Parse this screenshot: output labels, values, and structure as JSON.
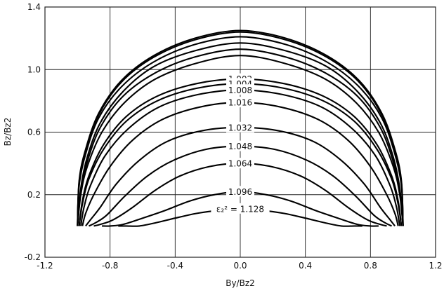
{
  "chart_data": {
    "type": "line",
    "xlabel": "By/Bz2",
    "ylabel": "Bz/Bz2",
    "xlim": [
      -1.2,
      1.2
    ],
    "ylim": [
      -0.2,
      1.4
    ],
    "xticks": [
      -1.2,
      -0.8,
      -0.4,
      0,
      0.4,
      0.8,
      1.2
    ],
    "yticks": [
      -0.2,
      0.2,
      0.6,
      1.0,
      1.4
    ],
    "xtick_labels": [
      "-1.2",
      "-0.8",
      "-0.4",
      "0.0",
      "0.4",
      "0.8",
      "1.2"
    ],
    "ytick_labels": [
      "-0.2",
      "0.2",
      "0.6",
      "1.0",
      "1.4"
    ],
    "grid": true,
    "series": [
      {
        "label": "",
        "x": [
          -1.0,
          -0.99,
          -0.95,
          -0.87,
          -0.73,
          -0.53,
          -0.28,
          0.0,
          0.28,
          0.53,
          0.73,
          0.87,
          0.95,
          0.99,
          1.0
        ],
        "y": [
          0.0,
          0.29,
          0.49,
          0.72,
          0.93,
          1.09,
          1.2,
          1.25,
          1.2,
          1.09,
          0.93,
          0.72,
          0.49,
          0.29,
          0.0
        ]
      },
      {
        "label": "",
        "x": [
          -1.0,
          -0.99,
          -0.95,
          -0.87,
          -0.73,
          -0.53,
          -0.28,
          0.0,
          0.28,
          0.53,
          0.73,
          0.87,
          0.95,
          0.99,
          1.0
        ],
        "y": [
          0.0,
          0.28,
          0.48,
          0.71,
          0.92,
          1.08,
          1.19,
          1.24,
          1.19,
          1.08,
          0.92,
          0.71,
          0.48,
          0.28,
          0.0
        ]
      },
      {
        "label": "",
        "x": [
          -1.0,
          -0.99,
          -0.95,
          -0.87,
          -0.73,
          -0.53,
          -0.28,
          0.0,
          0.28,
          0.53,
          0.73,
          0.87,
          0.95,
          0.99,
          1.0
        ],
        "y": [
          0.0,
          0.26,
          0.46,
          0.69,
          0.89,
          1.05,
          1.16,
          1.21,
          1.16,
          1.05,
          0.89,
          0.69,
          0.46,
          0.26,
          0.0
        ]
      },
      {
        "label": "",
        "x": [
          -1.0,
          -0.98,
          -0.94,
          -0.86,
          -0.72,
          -0.53,
          -0.28,
          0.0,
          0.28,
          0.53,
          0.72,
          0.86,
          0.94,
          0.98,
          1.0
        ],
        "y": [
          0.0,
          0.24,
          0.44,
          0.66,
          0.86,
          1.02,
          1.12,
          1.17,
          1.12,
          1.02,
          0.86,
          0.66,
          0.44,
          0.24,
          0.0
        ]
      },
      {
        "label": "",
        "x": [
          -1.0,
          -0.98,
          -0.94,
          -0.86,
          -0.72,
          -0.52,
          -0.28,
          0.0,
          0.28,
          0.52,
          0.72,
          0.86,
          0.94,
          0.98,
          1.0
        ],
        "y": [
          0.0,
          0.22,
          0.41,
          0.63,
          0.83,
          0.98,
          1.08,
          1.13,
          1.08,
          0.98,
          0.83,
          0.63,
          0.41,
          0.22,
          0.0
        ]
      },
      {
        "label": "",
        "x": [
          -1.0,
          -0.98,
          -0.94,
          -0.85,
          -0.71,
          -0.52,
          -0.27,
          0.0,
          0.27,
          0.52,
          0.71,
          0.85,
          0.94,
          0.98,
          1.0
        ],
        "y": [
          0.0,
          0.2,
          0.38,
          0.6,
          0.79,
          0.94,
          1.04,
          1.09,
          1.04,
          0.94,
          0.79,
          0.6,
          0.38,
          0.2,
          0.0
        ]
      },
      {
        "label": "1.002",
        "x": [
          -0.99,
          -0.97,
          -0.93,
          -0.84,
          -0.7,
          -0.51,
          -0.27,
          0.0,
          0.27,
          0.51,
          0.7,
          0.84,
          0.93,
          0.97,
          0.99
        ],
        "y": [
          0.0,
          0.16,
          0.32,
          0.52,
          0.7,
          0.83,
          0.91,
          0.94,
          0.91,
          0.83,
          0.7,
          0.52,
          0.32,
          0.16,
          0.0
        ]
      },
      {
        "label": "1.004",
        "x": [
          -0.99,
          -0.97,
          -0.93,
          -0.84,
          -0.7,
          -0.51,
          -0.27,
          0.0,
          0.27,
          0.51,
          0.7,
          0.84,
          0.93,
          0.97,
          0.99
        ],
        "y": [
          0.0,
          0.14,
          0.3,
          0.49,
          0.67,
          0.8,
          0.88,
          0.91,
          0.88,
          0.8,
          0.67,
          0.49,
          0.3,
          0.14,
          0.0
        ]
      },
      {
        "label": "1.008",
        "x": [
          -0.98,
          -0.96,
          -0.92,
          -0.83,
          -0.69,
          -0.5,
          -0.26,
          0.0,
          0.26,
          0.5,
          0.69,
          0.83,
          0.92,
          0.96,
          0.98
        ],
        "y": [
          0.0,
          0.12,
          0.26,
          0.45,
          0.62,
          0.76,
          0.84,
          0.87,
          0.84,
          0.76,
          0.62,
          0.45,
          0.26,
          0.12,
          0.0
        ]
      },
      {
        "label": "1.016",
        "x": [
          -0.97,
          -0.95,
          -0.9,
          -0.8,
          -0.66,
          -0.48,
          -0.25,
          0.0,
          0.25,
          0.48,
          0.66,
          0.8,
          0.9,
          0.95,
          0.97
        ],
        "y": [
          0.0,
          0.08,
          0.2,
          0.38,
          0.55,
          0.68,
          0.76,
          0.79,
          0.76,
          0.68,
          0.55,
          0.38,
          0.2,
          0.08,
          0.0
        ]
      },
      {
        "label": "1.032",
        "x": [
          -0.95,
          -0.92,
          -0.86,
          -0.76,
          -0.62,
          -0.45,
          -0.23,
          0.0,
          0.23,
          0.45,
          0.62,
          0.76,
          0.86,
          0.92,
          0.95
        ],
        "y": [
          0.0,
          0.04,
          0.12,
          0.27,
          0.42,
          0.54,
          0.61,
          0.63,
          0.61,
          0.54,
          0.42,
          0.27,
          0.12,
          0.04,
          0.0
        ]
      },
      {
        "label": "1.048",
        "x": [
          -0.93,
          -0.89,
          -0.82,
          -0.71,
          -0.57,
          -0.41,
          -0.21,
          0.0,
          0.21,
          0.41,
          0.57,
          0.71,
          0.82,
          0.89,
          0.93
        ],
        "y": [
          0.0,
          0.02,
          0.07,
          0.19,
          0.32,
          0.42,
          0.49,
          0.51,
          0.49,
          0.42,
          0.32,
          0.19,
          0.07,
          0.02,
          0.0
        ]
      },
      {
        "label": "1.064",
        "x": [
          -0.9,
          -0.86,
          -0.78,
          -0.66,
          -0.52,
          -0.37,
          -0.19,
          0.0,
          0.19,
          0.37,
          0.52,
          0.66,
          0.78,
          0.86,
          0.9
        ],
        "y": [
          0.0,
          0.01,
          0.04,
          0.12,
          0.23,
          0.32,
          0.38,
          0.4,
          0.38,
          0.32,
          0.23,
          0.12,
          0.04,
          0.01,
          0.0
        ]
      },
      {
        "label": "1.096",
        "x": [
          -0.85,
          -0.8,
          -0.72,
          -0.6,
          -0.46,
          -0.31,
          -0.16,
          0.0,
          0.16,
          0.31,
          0.46,
          0.6,
          0.72,
          0.8,
          0.85
        ],
        "y": [
          0.0,
          0.0,
          0.01,
          0.05,
          0.1,
          0.16,
          0.2,
          0.22,
          0.2,
          0.16,
          0.1,
          0.05,
          0.01,
          0.0,
          0.0
        ]
      },
      {
        "label": "ε₂² = 1.128",
        "x": [
          -0.75,
          -0.7,
          -0.62,
          -0.52,
          -0.4,
          -0.27,
          -0.13,
          0.0,
          0.13,
          0.27,
          0.4,
          0.52,
          0.62,
          0.7,
          0.75
        ],
        "y": [
          0.0,
          0.0,
          0.0,
          0.02,
          0.05,
          0.08,
          0.1,
          0.11,
          0.1,
          0.08,
          0.05,
          0.02,
          0.0,
          0.0,
          0.0
        ]
      }
    ]
  }
}
